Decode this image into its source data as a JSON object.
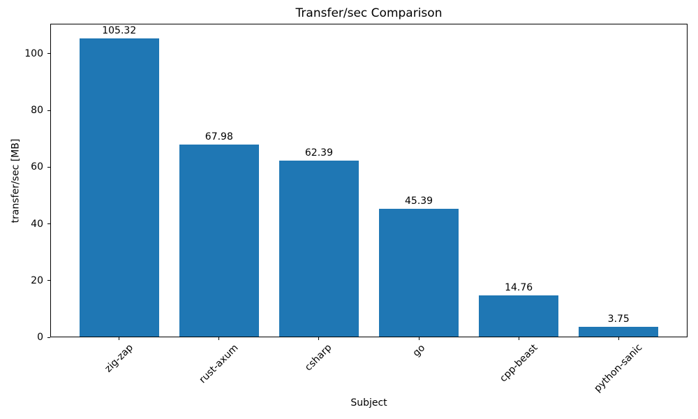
{
  "chart_data": {
    "type": "bar",
    "title": "Transfer/sec Comparison",
    "xlabel": "Subject",
    "ylabel": "transfer/sec [MB]",
    "categories": [
      "zig-zap",
      "rust-axum",
      "csharp",
      "go",
      "cpp-beast",
      "python-sanic"
    ],
    "values": [
      105.32,
      67.98,
      62.39,
      45.39,
      14.76,
      3.75
    ],
    "bar_labels": [
      "105.32",
      "67.98",
      "62.39",
      "45.39",
      "14.76",
      "3.75"
    ],
    "yticks": [
      0,
      20,
      40,
      60,
      80,
      100
    ],
    "ylim": [
      0,
      110.59
    ],
    "xtick_rotation_deg": 45,
    "bar_color": "#1f77b4",
    "bar_width_fraction": 0.8,
    "grid": false,
    "legend": null
  }
}
